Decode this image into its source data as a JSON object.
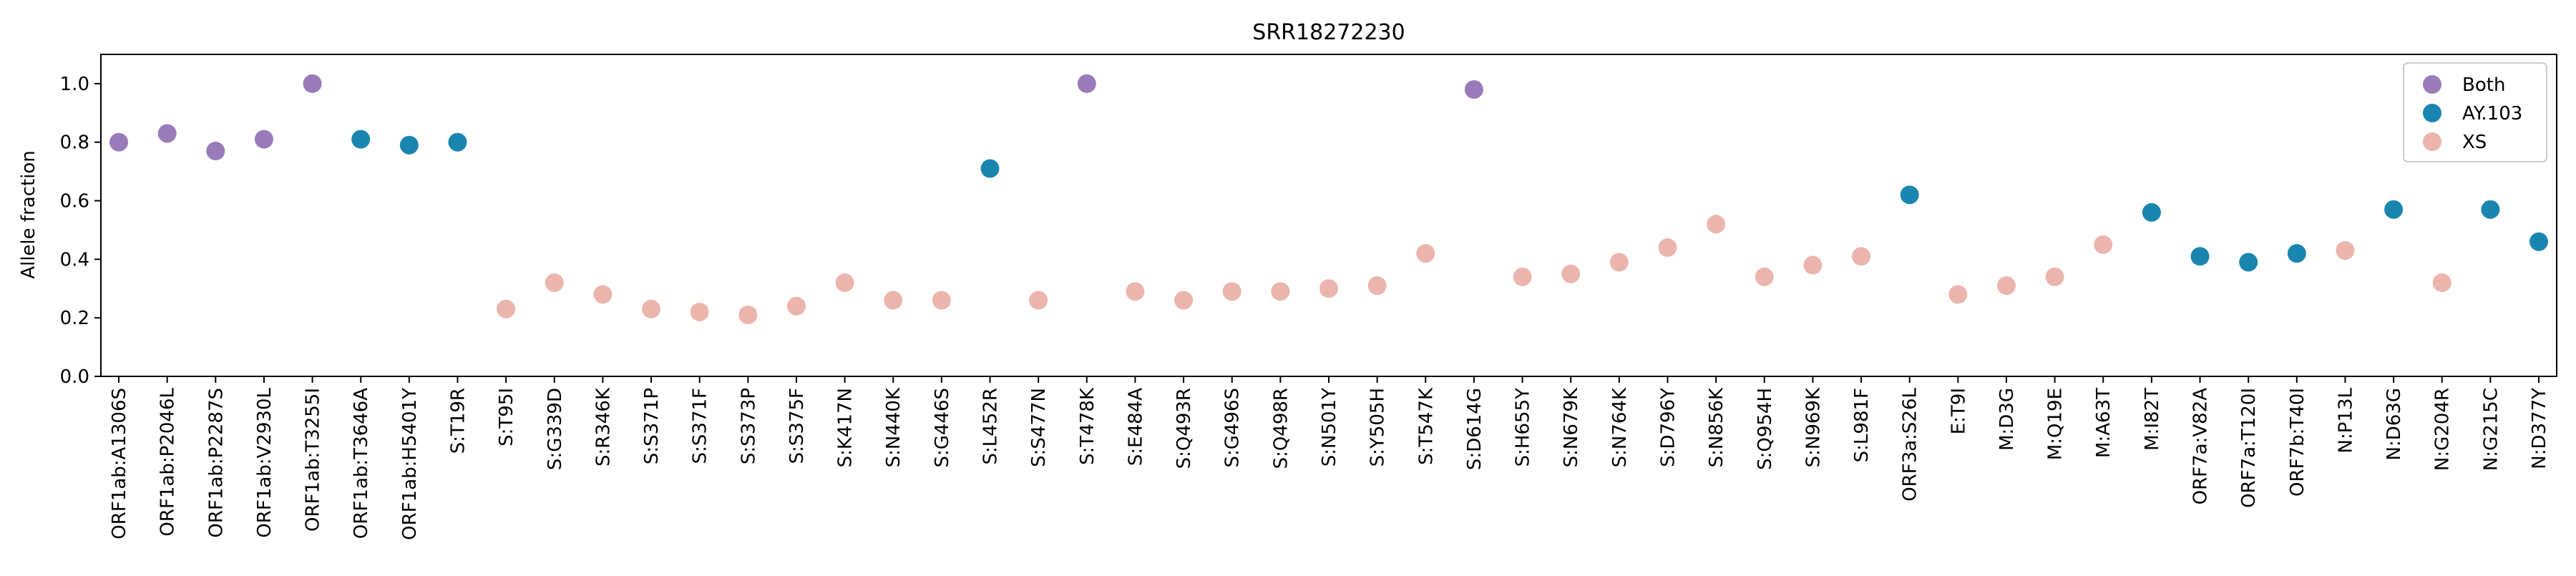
{
  "chart_data": {
    "type": "scatter",
    "title": "SRR18272230",
    "xlabel": "",
    "ylabel": "Allele fraction",
    "ylim": [
      0.0,
      1.1
    ],
    "yticks": [
      "0.0",
      "0.2",
      "0.4",
      "0.6",
      "0.8",
      "1.0"
    ],
    "grid": false,
    "legend_position": "top-right",
    "categories": [
      "ORF1ab:A1306S",
      "ORF1ab:P2046L",
      "ORF1ab:P2287S",
      "ORF1ab:V2930L",
      "ORF1ab:T3255I",
      "ORF1ab:T3646A",
      "ORF1ab:H5401Y",
      "S:T19R",
      "S:T95I",
      "S:G339D",
      "S:R346K",
      "S:S371P",
      "S:S371F",
      "S:S373P",
      "S:S375F",
      "S:K417N",
      "S:N440K",
      "S:G446S",
      "S:L452R",
      "S:S477N",
      "S:T478K",
      "S:E484A",
      "S:Q493R",
      "S:G496S",
      "S:Q498R",
      "S:N501Y",
      "S:Y505H",
      "S:T547K",
      "S:D614G",
      "S:H655Y",
      "S:N679K",
      "S:N764K",
      "S:D796Y",
      "S:N856K",
      "S:Q954H",
      "S:N969K",
      "S:L981F",
      "ORF3a:S26L",
      "E:T9I",
      "M:D3G",
      "M:Q19E",
      "M:A63T",
      "M:I82T",
      "ORF7a:V82A",
      "ORF7a:T120I",
      "ORF7b:T40I",
      "N:P13L",
      "N:D63G",
      "N:G204R",
      "N:G215C",
      "N:D377Y"
    ],
    "series": [
      {
        "name": "Both",
        "color": "#9a7bba",
        "points": [
          {
            "x": "ORF1ab:A1306S",
            "y": 0.8
          },
          {
            "x": "ORF1ab:P2046L",
            "y": 0.83
          },
          {
            "x": "ORF1ab:P2287S",
            "y": 0.77
          },
          {
            "x": "ORF1ab:V2930L",
            "y": 0.81
          },
          {
            "x": "ORF1ab:T3255I",
            "y": 1.0
          },
          {
            "x": "S:T478K",
            "y": 1.0
          },
          {
            "x": "S:D614G",
            "y": 0.98
          }
        ]
      },
      {
        "name": "AY.103",
        "color": "#1a86b0",
        "points": [
          {
            "x": "ORF1ab:T3646A",
            "y": 0.81
          },
          {
            "x": "ORF1ab:H5401Y",
            "y": 0.79
          },
          {
            "x": "S:T19R",
            "y": 0.8
          },
          {
            "x": "S:L452R",
            "y": 0.71
          },
          {
            "x": "ORF3a:S26L",
            "y": 0.62
          },
          {
            "x": "M:I82T",
            "y": 0.56
          },
          {
            "x": "ORF7a:V82A",
            "y": 0.41
          },
          {
            "x": "ORF7a:T120I",
            "y": 0.39
          },
          {
            "x": "ORF7b:T40I",
            "y": 0.42
          },
          {
            "x": "N:D63G",
            "y": 0.57
          },
          {
            "x": "N:G215C",
            "y": 0.57
          },
          {
            "x": "N:D377Y",
            "y": 0.46
          }
        ]
      },
      {
        "name": "XS",
        "color": "#ebb5ad",
        "points": [
          {
            "x": "S:T95I",
            "y": 0.23
          },
          {
            "x": "S:G339D",
            "y": 0.32
          },
          {
            "x": "S:R346K",
            "y": 0.28
          },
          {
            "x": "S:S371P",
            "y": 0.23
          },
          {
            "x": "S:S371F",
            "y": 0.22
          },
          {
            "x": "S:S373P",
            "y": 0.21
          },
          {
            "x": "S:S375F",
            "y": 0.24
          },
          {
            "x": "S:K417N",
            "y": 0.32
          },
          {
            "x": "S:N440K",
            "y": 0.26
          },
          {
            "x": "S:G446S",
            "y": 0.26
          },
          {
            "x": "S:S477N",
            "y": 0.26
          },
          {
            "x": "S:E484A",
            "y": 0.29
          },
          {
            "x": "S:Q493R",
            "y": 0.26
          },
          {
            "x": "S:G496S",
            "y": 0.29
          },
          {
            "x": "S:Q498R",
            "y": 0.29
          },
          {
            "x": "S:N501Y",
            "y": 0.3
          },
          {
            "x": "S:Y505H",
            "y": 0.31
          },
          {
            "x": "S:T547K",
            "y": 0.42
          },
          {
            "x": "S:H655Y",
            "y": 0.34
          },
          {
            "x": "S:N679K",
            "y": 0.35
          },
          {
            "x": "S:N764K",
            "y": 0.39
          },
          {
            "x": "S:D796Y",
            "y": 0.44
          },
          {
            "x": "S:N856K",
            "y": 0.52
          },
          {
            "x": "S:Q954H",
            "y": 0.34
          },
          {
            "x": "S:N969K",
            "y": 0.38
          },
          {
            "x": "S:L981F",
            "y": 0.41
          },
          {
            "x": "E:T9I",
            "y": 0.28
          },
          {
            "x": "M:D3G",
            "y": 0.31
          },
          {
            "x": "M:Q19E",
            "y": 0.34
          },
          {
            "x": "M:A63T",
            "y": 0.45
          },
          {
            "x": "N:P13L",
            "y": 0.43
          },
          {
            "x": "N:G204R",
            "y": 0.32
          }
        ]
      }
    ]
  }
}
